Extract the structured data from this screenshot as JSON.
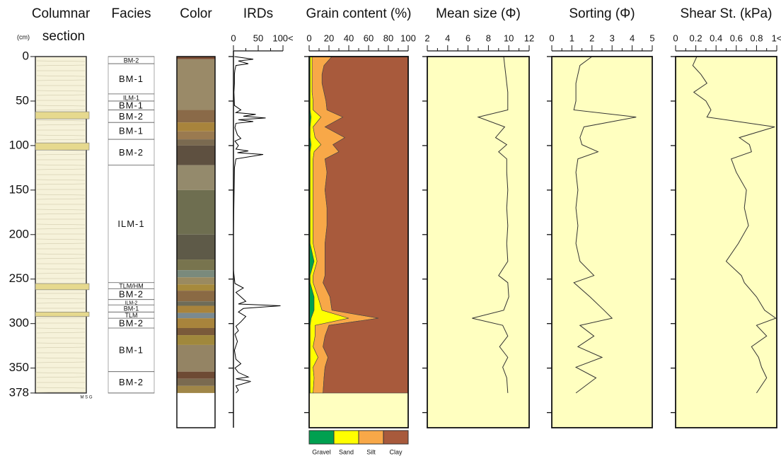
{
  "chart_data": [
    {
      "type": "column",
      "title": "Columnar",
      "title_line2": "section",
      "y_unit_label": "(cm)",
      "x_label": "M S G",
      "ylim": [
        0,
        417
      ],
      "yticks": [
        0,
        50,
        100,
        150,
        200,
        250,
        300,
        350,
        378
      ]
    },
    {
      "type": "facies",
      "title": "Facies",
      "ylim": [
        0,
        417
      ],
      "boundaries": [
        0,
        8,
        42,
        50,
        60,
        74,
        93,
        122,
        254,
        261,
        273,
        279,
        287,
        294,
        305,
        354,
        378
      ],
      "labels": [
        "BM-2",
        "BM-1",
        "ILM-1",
        "BM-1",
        "BM-2",
        "BM-1",
        "BM-2",
        "ILM-1",
        "TLM/HM",
        "BM-2",
        "ILM-2",
        "BM-1",
        "TLM",
        "BM-2",
        "BM-1",
        "BM-2"
      ]
    },
    {
      "type": "color",
      "title": "Color",
      "ylim": [
        0,
        417
      ],
      "boundaries": [
        0,
        3,
        60,
        74,
        84,
        93,
        100,
        122,
        150,
        200,
        228,
        240,
        248,
        256,
        263,
        275,
        280,
        288,
        294,
        305,
        313,
        324,
        354,
        362,
        370,
        378
      ],
      "colors": [
        "#7a4a30",
        "#9a8a68",
        "#8a6a48",
        "#a8843c",
        "#9a7a50",
        "#7a6a50",
        "#5e5040",
        "#948a6c",
        "#6e6e50",
        "#5e5a48",
        "#78744e",
        "#7a8a7c",
        "#9a8a60",
        "#a68a3c",
        "#8a6a44",
        "#6e6c58",
        "#a8843c",
        "#7a8a90",
        "#a8843c",
        "#7a5a3a",
        "#a0883c",
        "#948464",
        "#6e4a34",
        "#7a6a50",
        "#a08648"
      ]
    },
    {
      "type": "line",
      "title": "IRDs",
      "color": "#000000",
      "xlim": [
        0,
        100
      ],
      "xticks": [
        0,
        50,
        {
          "value": 100,
          "label": "100<"
        }
      ],
      "ylim": [
        0,
        417
      ],
      "yticks": [
        0,
        50,
        100,
        150,
        200,
        250,
        300,
        350,
        400
      ],
      "depth": [
        0,
        3,
        5,
        8,
        10,
        15,
        20,
        30,
        40,
        55,
        60,
        63,
        65,
        67,
        69,
        71,
        73,
        75,
        80,
        88,
        92,
        95,
        100,
        104,
        106,
        108,
        110,
        115,
        125,
        200,
        240,
        255,
        260,
        265,
        270,
        275,
        278,
        280,
        283,
        287,
        292,
        298,
        303,
        308,
        312,
        320,
        330,
        340,
        345,
        350,
        355,
        360,
        362,
        365,
        370,
        375,
        378
      ],
      "values": [
        2,
        40,
        10,
        30,
        5,
        3,
        2,
        2,
        1,
        2,
        15,
        5,
        45,
        20,
        65,
        10,
        40,
        5,
        3,
        8,
        15,
        3,
        10,
        5,
        30,
        8,
        60,
        5,
        2,
        0,
        0,
        3,
        20,
        5,
        15,
        25,
        10,
        95,
        20,
        10,
        25,
        15,
        5,
        10,
        3,
        8,
        2,
        5,
        15,
        3,
        10,
        30,
        5,
        35,
        5,
        10,
        5
      ]
    },
    {
      "type": "stacked-area",
      "title": "Grain content (%)",
      "background": "#ffffc0",
      "xlim": [
        0,
        100
      ],
      "xticks": [
        0,
        20,
        40,
        60,
        80,
        100
      ],
      "ylim": [
        0,
        417
      ],
      "yticks": [
        0,
        50,
        100,
        150,
        200,
        250,
        300,
        350,
        400
      ],
      "depth": [
        0,
        10,
        20,
        30,
        40,
        50,
        60,
        68,
        79,
        91,
        99,
        107,
        115,
        130,
        150,
        170,
        190,
        210,
        230,
        246,
        254,
        270,
        285,
        294,
        302,
        314,
        326,
        338,
        349,
        361,
        378
      ],
      "series": [
        {
          "name": "Gravel",
          "color": "#00a050",
          "values": [
            1,
            1,
            1,
            1,
            1,
            1,
            1,
            2,
            1,
            1,
            2,
            1,
            1,
            1,
            1,
            1,
            1,
            1,
            5,
            1,
            1,
            5,
            5,
            2,
            1,
            1,
            1,
            1,
            1,
            1,
            1
          ]
        },
        {
          "name": "Sand",
          "color": "#ffff00",
          "values": [
            2,
            2,
            2,
            2,
            2,
            3,
            3,
            10,
            3,
            5,
            10,
            4,
            3,
            3,
            3,
            3,
            3,
            3,
            3,
            3,
            3,
            4,
            8,
            38,
            5,
            5,
            3,
            8,
            3,
            4,
            3
          ]
        },
        {
          "name": "Silt",
          "color": "#f8a848",
          "values": [
            20,
            12,
            10,
            10,
            12,
            13,
            14,
            22,
            12,
            30,
            12,
            25,
            12,
            14,
            12,
            14,
            14,
            12,
            8,
            12,
            10,
            12,
            10,
            30,
            14,
            10,
            10,
            10,
            12,
            10,
            10
          ]
        },
        {
          "name": "Clay",
          "color": "#a85a3c",
          "values": [
            77,
            85,
            87,
            87,
            85,
            83,
            82,
            66,
            84,
            64,
            76,
            70,
            84,
            82,
            84,
            82,
            82,
            84,
            84,
            84,
            86,
            79,
            77,
            30,
            80,
            84,
            86,
            81,
            84,
            85,
            86
          ]
        }
      ]
    },
    {
      "type": "line",
      "title": "Mean size (Φ)",
      "color": "#333333",
      "background": "#ffffc0",
      "xlim": [
        2,
        12
      ],
      "xticks": [
        2,
        4,
        6,
        8,
        10,
        12
      ],
      "ylim": [
        0,
        417
      ],
      "yticks": [
        0,
        50,
        100,
        150,
        200,
        250,
        300,
        350,
        400
      ],
      "depth": [
        0,
        10,
        20,
        30,
        40,
        50,
        60,
        68,
        79,
        91,
        99,
        107,
        115,
        130,
        150,
        170,
        190,
        210,
        230,
        246,
        254,
        270,
        285,
        294,
        302,
        314,
        326,
        338,
        349,
        361,
        378
      ],
      "values": [
        9.5,
        9.6,
        9.7,
        9.8,
        9.9,
        9.9,
        9.9,
        7,
        9.6,
        8.7,
        9.8,
        9,
        9.8,
        9.8,
        9.9,
        9.8,
        9.9,
        9.8,
        9.9,
        9,
        9.9,
        10,
        9.5,
        6.4,
        9.4,
        9.9,
        9.1,
        9.9,
        9.4,
        9.8,
        9.9
      ]
    },
    {
      "type": "line",
      "title": "Sorting (Φ)",
      "color": "#333333",
      "background": "#ffffc0",
      "xlim": [
        0,
        5
      ],
      "xticks": [
        0,
        1,
        2,
        3,
        4,
        5
      ],
      "ylim": [
        0,
        417
      ],
      "yticks": [
        0,
        50,
        100,
        150,
        200,
        250,
        300,
        350,
        400
      ],
      "depth": [
        0,
        10,
        20,
        30,
        40,
        50,
        60,
        68,
        79,
        91,
        99,
        107,
        115,
        130,
        150,
        170,
        190,
        210,
        230,
        246,
        254,
        270,
        285,
        294,
        302,
        314,
        326,
        338,
        349,
        361,
        378
      ],
      "values": [
        2,
        1.4,
        1.3,
        1.2,
        1.2,
        1.2,
        1.1,
        4.2,
        1.6,
        1.4,
        1.5,
        2.3,
        1.3,
        1.2,
        1.3,
        1.2,
        1.3,
        1.2,
        1.4,
        2.1,
        1.1,
        1.9,
        2.6,
        3,
        1.4,
        2.1,
        1.3,
        2.5,
        1.2,
        2.2,
        1.2
      ]
    },
    {
      "type": "line",
      "title": "Shear St. (kPa)",
      "color": "#333333",
      "background": "#ffffc0",
      "xlim": [
        0,
        1
      ],
      "xticks": [
        0,
        0.2,
        0.4,
        0.6,
        0.8,
        {
          "value": 1,
          "label": "1<"
        }
      ],
      "ylim": [
        0,
        417
      ],
      "yticks": [
        0,
        50,
        100,
        150,
        200,
        250,
        300,
        350,
        400
      ],
      "depth": [
        0,
        10,
        20,
        30,
        40,
        50,
        60,
        68,
        79,
        91,
        99,
        107,
        115,
        130,
        150,
        170,
        190,
        210,
        230,
        246,
        254,
        270,
        285,
        294,
        302,
        314,
        326,
        338,
        349,
        361,
        378
      ],
      "values": [
        0.21,
        0.17,
        0.25,
        0.31,
        0.18,
        0.3,
        0.35,
        0.31,
        0.98,
        0.63,
        0.73,
        0.75,
        0.55,
        0.6,
        0.7,
        0.68,
        0.72,
        0.62,
        0.5,
        0.65,
        0.68,
        0.8,
        0.88,
        0.99,
        0.8,
        0.9,
        0.75,
        0.82,
        0.85,
        0.9,
        0.8
      ]
    }
  ]
}
